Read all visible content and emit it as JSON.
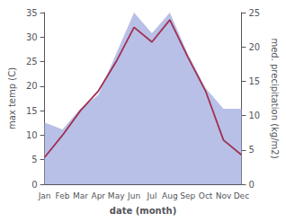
{
  "chart_data": {
    "type": "line",
    "xlabel": "date (month)",
    "ylabel": "max temp (C)",
    "y2label": "med. precipitation (kg/m2)",
    "categories": [
      "Jan",
      "Feb",
      "Mar",
      "Apr",
      "May",
      "Jun",
      "Jul",
      "Aug",
      "Sep",
      "Oct",
      "Nov",
      "Dec"
    ],
    "series": [
      {
        "type": "area",
        "color": "#b8c0e8",
        "axis": "y2",
        "values": [
          9,
          8,
          11,
          13,
          19,
          25,
          22,
          25,
          19,
          14,
          11,
          11
        ]
      },
      {
        "type": "line",
        "color": "#a03050",
        "values": [
          5.5,
          10.0,
          15.0,
          19.0,
          25.0,
          32.0,
          29.0,
          33.5,
          26.0,
          19.0,
          9.0,
          6.0
        ]
      }
    ],
    "ylim": [
      0,
      35
    ],
    "yticks": [
      0,
      5,
      10,
      15,
      20,
      25,
      30,
      35
    ],
    "y2lim": [
      0,
      25
    ],
    "y2ticks": [
      0,
      5,
      10,
      15,
      20,
      25
    ],
    "grid": false
  }
}
